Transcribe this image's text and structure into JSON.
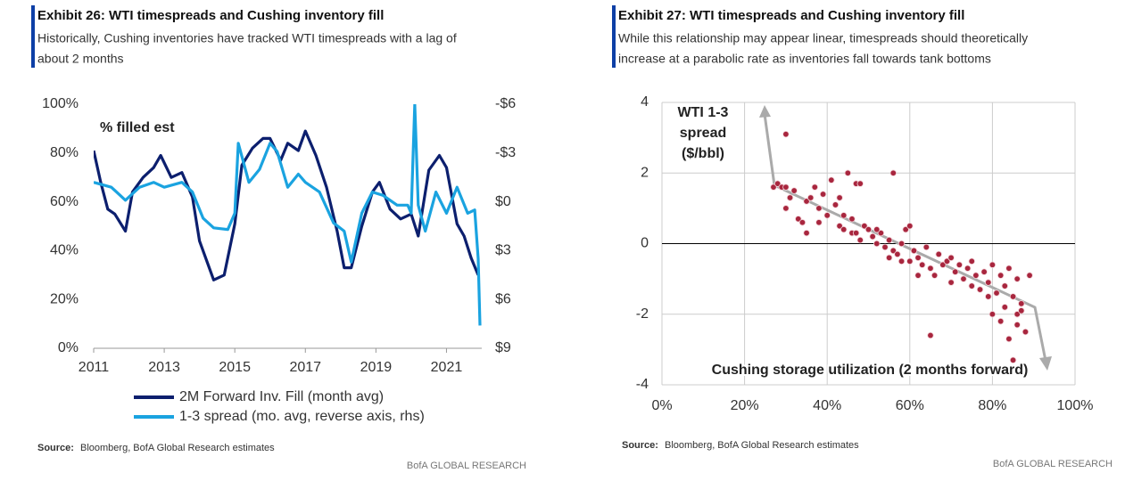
{
  "chart_data": [
    {
      "type": "line",
      "title": "Exhibit 26: WTI timespreads and Cushing inventory fill",
      "subtitle": [
        "Historically, Cushing inventories have tracked WTI timespreads with a lag of",
        "about 2 months"
      ],
      "annotation": "% filled est",
      "xlim": [
        2011,
        2022
      ],
      "xticks": [
        2011,
        2013,
        2015,
        2017,
        2019,
        2021
      ],
      "ylim": [
        0,
        100
      ],
      "yticks": [
        {
          "value": 0,
          "label": "0%"
        },
        {
          "value": 20,
          "label": "20%"
        },
        {
          "value": 40,
          "label": "40%"
        },
        {
          "value": 60,
          "label": "60%"
        },
        {
          "value": 80,
          "label": "80%"
        },
        {
          "value": 100,
          "label": "100%"
        }
      ],
      "y2lim": [
        -6,
        9
      ],
      "y2_reversed": true,
      "y2ticks": [
        {
          "value": -6,
          "label": "-$6"
        },
        {
          "value": -3,
          "label": "-$3"
        },
        {
          "value": 0,
          "label": "$0"
        },
        {
          "value": 3,
          "label": "$3"
        },
        {
          "value": 6,
          "label": "$6"
        },
        {
          "value": 9,
          "label": "$9"
        }
      ],
      "series": [
        {
          "name": "2M Forward Inv. Fill (month avg)",
          "color": "#0c1f6e",
          "x": [
            2011.0,
            2011.2,
            2011.4,
            2011.6,
            2011.9,
            2012.1,
            2012.4,
            2012.7,
            2012.9,
            2013.2,
            2013.5,
            2013.8,
            2014.0,
            2014.4,
            2014.7,
            2015.0,
            2015.2,
            2015.5,
            2015.8,
            2016.0,
            2016.3,
            2016.5,
            2016.8,
            2017.0,
            2017.3,
            2017.6,
            2017.9,
            2018.1,
            2018.3,
            2018.6,
            2018.9,
            2019.1,
            2019.4,
            2019.7,
            2020.0,
            2020.2,
            2020.5,
            2020.8,
            2021.0,
            2021.3,
            2021.5,
            2021.7,
            2021.9
          ],
          "values": [
            81,
            68,
            57,
            55,
            48,
            64,
            70,
            74,
            79,
            70,
            72,
            62,
            44,
            28,
            30,
            51,
            75,
            82,
            86,
            86,
            77,
            84,
            81,
            89,
            79,
            66,
            48,
            33,
            33,
            50,
            64,
            68,
            57,
            53,
            55,
            46,
            73,
            79,
            74,
            51,
            46,
            37,
            30
          ]
        },
        {
          "name": "1-3 spread (mo. avg, reverse axis, rhs)",
          "color": "#1aa3e0",
          "axis": "y2",
          "x": [
            2011.0,
            2011.5,
            2011.9,
            2012.3,
            2012.7,
            2013.0,
            2013.5,
            2013.8,
            2014.1,
            2014.4,
            2014.8,
            2015.0,
            2015.1,
            2015.4,
            2015.7,
            2016.0,
            2016.2,
            2016.5,
            2016.8,
            2017.0,
            2017.4,
            2017.8,
            2018.1,
            2018.3,
            2018.6,
            2018.9,
            2019.2,
            2019.6,
            2019.9,
            2020.0,
            2020.1,
            2020.2,
            2020.4,
            2020.7,
            2021.0,
            2021.3,
            2021.6,
            2021.8,
            2021.9,
            2021.95
          ],
          "values": [
            -1.2,
            -0.9,
            -0.1,
            -0.9,
            -1.2,
            -0.9,
            -1.2,
            -0.6,
            1.0,
            1.6,
            1.7,
            0.7,
            -3.6,
            -1.2,
            -2.0,
            -3.6,
            -3.1,
            -0.9,
            -1.7,
            -1.2,
            -0.6,
            1.3,
            1.8,
            3.7,
            0.7,
            -0.6,
            -0.4,
            0.2,
            0.2,
            0.7,
            -6.0,
            0.2,
            1.8,
            -0.6,
            0.7,
            -0.9,
            0.7,
            0.5,
            3.5,
            7.6
          ]
        }
      ],
      "source_label": "Source:",
      "source": "Bloomberg, BofA Global Research estimates",
      "footer": "BofA GLOBAL RESEARCH"
    },
    {
      "type": "scatter",
      "title": "Exhibit 27: WTI timespreads and Cushing inventory fill",
      "subtitle": [
        "While this relationship may appear linear, timespreads should theoretically",
        "increase at a parabolic rate as inventories fall towards tank bottoms"
      ],
      "y_label": [
        "WTI 1-3",
        "spread",
        "($/bbl)"
      ],
      "x_label": "Cushing storage utilization (2 months forward)",
      "grid": true,
      "color": "#a8263e",
      "xlim": [
        0,
        100
      ],
      "xticks": [
        {
          "value": 0,
          "label": "0%"
        },
        {
          "value": 20,
          "label": "20%"
        },
        {
          "value": 40,
          "label": "40%"
        },
        {
          "value": 60,
          "label": "60%"
        },
        {
          "value": 80,
          "label": "80%"
        },
        {
          "value": 100,
          "label": "100%"
        }
      ],
      "ylim": [
        -4,
        4
      ],
      "yticks": [
        -4,
        -2,
        0,
        2,
        4
      ],
      "x": [
        30,
        27,
        28,
        29,
        30,
        31,
        32,
        30,
        33,
        34,
        35,
        36,
        37,
        38,
        39,
        40,
        41,
        42,
        43,
        44,
        45,
        46,
        47,
        48,
        44,
        46,
        48,
        49,
        50,
        51,
        52,
        53,
        54,
        55,
        56,
        56,
        57,
        58,
        59,
        60,
        60,
        61,
        62,
        63,
        64,
        65,
        66,
        67,
        68,
        69,
        70,
        71,
        72,
        73,
        74,
        75,
        76,
        77,
        78,
        79,
        80,
        81,
        82,
        83,
        84,
        85,
        86,
        87,
        88,
        89,
        65,
        80,
        82,
        84,
        85,
        86,
        83,
        79,
        75,
        70,
        62,
        58,
        55,
        52,
        47,
        43,
        38,
        35,
        86,
        87
      ],
      "values": [
        3.1,
        1.6,
        1.7,
        1.6,
        1.6,
        1.3,
        1.5,
        1.0,
        0.7,
        0.6,
        1.2,
        1.3,
        1.6,
        1.0,
        1.4,
        0.8,
        1.8,
        1.1,
        0.5,
        0.8,
        2.0,
        0.7,
        1.7,
        1.7,
        0.4,
        0.3,
        0.1,
        0.5,
        0.4,
        0.2,
        0.0,
        0.3,
        -0.1,
        0.1,
        2.0,
        -0.2,
        -0.3,
        0.0,
        0.4,
        0.5,
        -0.5,
        -0.2,
        -0.4,
        -0.6,
        -0.1,
        -0.7,
        -0.9,
        -0.3,
        -0.6,
        -0.5,
        -0.4,
        -0.8,
        -0.6,
        -1.0,
        -0.7,
        -0.5,
        -0.9,
        -1.3,
        -0.8,
        -1.1,
        -0.6,
        -1.4,
        -0.9,
        -1.2,
        -0.7,
        -1.5,
        -1.0,
        -1.7,
        -2.5,
        -0.9,
        -2.6,
        -2.0,
        -2.2,
        -2.7,
        -3.3,
        -2.0,
        -1.8,
        -1.5,
        -1.2,
        -1.1,
        -0.9,
        -0.5,
        -0.4,
        0.4,
        0.3,
        1.3,
        0.6,
        0.3,
        -2.3,
        -1.9
      ],
      "source_label": "Source:",
      "source": "Bloomberg, BofA Global Research estimates",
      "footer": "BofA GLOBAL RESEARCH"
    }
  ]
}
